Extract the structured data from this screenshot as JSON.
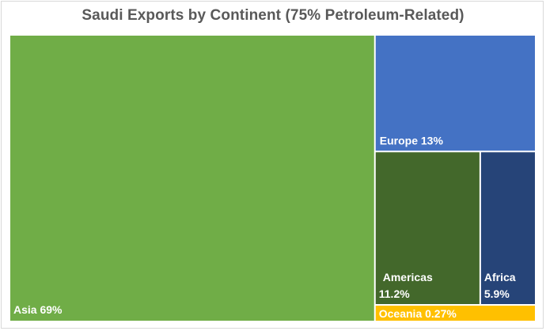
{
  "chart_data": {
    "type": "treemap",
    "title": "Saudi Exports by Continent (75% Petroleum-Related)",
    "items": [
      {
        "name": "Asia",
        "value": 69,
        "label": "Asia 69%",
        "color": "#70ad47"
      },
      {
        "name": "Europe",
        "value": 13,
        "label": "Europe 13%",
        "color": "#4472c4"
      },
      {
        "name": "Americas",
        "value": 11.2,
        "label_name": "Americas",
        "label_value": "11.2%",
        "color": "#43682b"
      },
      {
        "name": "Africa",
        "value": 5.9,
        "label_name": "Africa",
        "label_value": "5.9%",
        "color": "#264478"
      },
      {
        "name": "Oceania",
        "value": 0.27,
        "label": "Oceania 0.27%",
        "color": "#ffc000"
      }
    ]
  }
}
